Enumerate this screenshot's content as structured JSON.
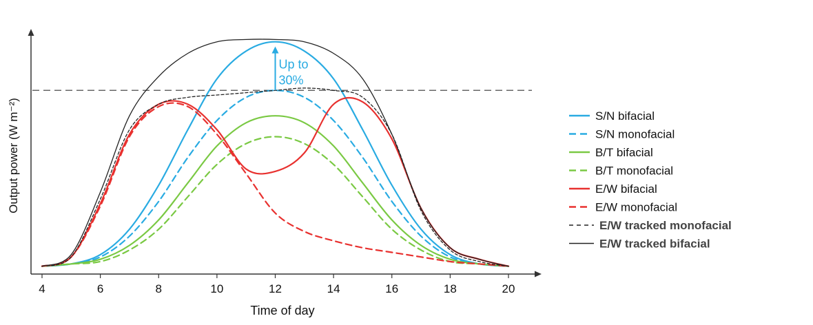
{
  "chart_data": {
    "type": "line",
    "title": "",
    "xlabel": "Time of day",
    "ylabel": "Output power (W m⁻²)",
    "xlim": [
      4,
      20
    ],
    "ylim": [
      0,
      1.0
    ],
    "xticks": [
      4,
      6,
      8,
      10,
      12,
      14,
      16,
      18,
      20
    ],
    "grid": false,
    "legend_position": "right",
    "reference_line": {
      "y": 0.77,
      "style": "dashed",
      "color": "#666666"
    },
    "annotation": {
      "text_line1": "Up to",
      "text_line2": "30%",
      "x": 12,
      "y_from": 0.77,
      "y_to": 0.96,
      "color": "#29abe2"
    },
    "series": [
      {
        "name": "S/N bifacial",
        "color": "#29abe2",
        "dash": "solid",
        "x": [
          4,
          5,
          6,
          7,
          8,
          9,
          10,
          11,
          12,
          13,
          14,
          15,
          16,
          17,
          18,
          19,
          20
        ],
        "y": [
          0.01,
          0.02,
          0.06,
          0.17,
          0.36,
          0.6,
          0.82,
          0.94,
          0.98,
          0.94,
          0.82,
          0.6,
          0.36,
          0.17,
          0.06,
          0.02,
          0.01
        ]
      },
      {
        "name": "S/N monofacial",
        "color": "#29abe2",
        "dash": "dashed",
        "x": [
          4,
          5,
          6,
          7,
          8,
          9,
          10,
          11,
          12,
          13,
          14,
          15,
          16,
          17,
          18,
          19,
          20
        ],
        "y": [
          0.01,
          0.02,
          0.05,
          0.14,
          0.29,
          0.48,
          0.64,
          0.74,
          0.77,
          0.74,
          0.64,
          0.48,
          0.29,
          0.14,
          0.05,
          0.02,
          0.01
        ]
      },
      {
        "name": "B/T bifacial",
        "color": "#7ac943",
        "dash": "solid",
        "x": [
          4,
          5,
          6,
          7,
          8,
          9,
          10,
          11,
          12,
          13,
          14,
          15,
          16,
          17,
          18,
          19,
          20
        ],
        "y": [
          0.01,
          0.02,
          0.04,
          0.1,
          0.21,
          0.37,
          0.53,
          0.63,
          0.66,
          0.63,
          0.53,
          0.37,
          0.21,
          0.1,
          0.04,
          0.02,
          0.01
        ]
      },
      {
        "name": "B/T monofacial",
        "color": "#7ac943",
        "dash": "dashed",
        "x": [
          4,
          5,
          6,
          7,
          8,
          9,
          10,
          11,
          12,
          13,
          14,
          15,
          16,
          17,
          18,
          19,
          20
        ],
        "y": [
          0.01,
          0.02,
          0.03,
          0.08,
          0.17,
          0.31,
          0.45,
          0.54,
          0.57,
          0.54,
          0.45,
          0.31,
          0.17,
          0.08,
          0.03,
          0.02,
          0.01
        ]
      },
      {
        "name": "E/W bifacial",
        "color": "#e8312f",
        "dash": "solid",
        "x": [
          4,
          5,
          6,
          7,
          8,
          9,
          10,
          11,
          12,
          13,
          14,
          15,
          16,
          17,
          18,
          19,
          20
        ],
        "y": [
          0.01,
          0.05,
          0.28,
          0.58,
          0.71,
          0.71,
          0.6,
          0.43,
          0.42,
          0.5,
          0.71,
          0.72,
          0.56,
          0.26,
          0.09,
          0.04,
          0.01
        ]
      },
      {
        "name": "E/W monofacial",
        "color": "#e8312f",
        "dash": "dashed",
        "x": [
          4,
          5,
          6,
          7,
          8,
          9,
          10,
          11,
          12,
          13,
          14,
          15,
          16,
          17,
          18,
          19,
          20
        ],
        "y": [
          0.01,
          0.05,
          0.27,
          0.57,
          0.7,
          0.7,
          0.58,
          0.41,
          0.24,
          0.16,
          0.12,
          0.09,
          0.07,
          0.05,
          0.03,
          0.02,
          0.01
        ]
      },
      {
        "name": "E/W tracked monofacial",
        "color": "#222222",
        "dash": "dashed",
        "x": [
          4,
          5,
          6,
          7,
          8,
          9,
          10,
          11,
          12,
          13,
          14,
          15,
          16,
          17,
          18,
          19,
          20
        ],
        "y": [
          0.01,
          0.05,
          0.3,
          0.6,
          0.71,
          0.74,
          0.75,
          0.76,
          0.77,
          0.78,
          0.77,
          0.74,
          0.58,
          0.25,
          0.08,
          0.03,
          0.01
        ]
      },
      {
        "name": "E/W tracked bifacial",
        "color": "#222222",
        "dash": "solid",
        "x": [
          4,
          5,
          6,
          7,
          8,
          9,
          10,
          11,
          12,
          13,
          14,
          15,
          16,
          17,
          18,
          19,
          20
        ],
        "y": [
          0.01,
          0.06,
          0.33,
          0.66,
          0.83,
          0.93,
          0.98,
          0.99,
          0.99,
          0.98,
          0.93,
          0.82,
          0.58,
          0.26,
          0.09,
          0.04,
          0.01
        ]
      }
    ]
  }
}
